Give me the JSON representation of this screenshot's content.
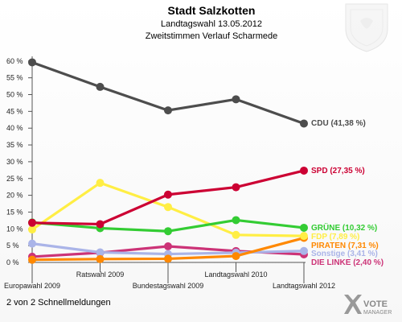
{
  "header": {
    "title": "Stadt Salzkotten",
    "subtitle": "Landtagswahl 13.05.2012",
    "subtitle2": "Zweitstimmen Verlauf Scharmede"
  },
  "footer": {
    "note": "2 von 2 Schnellmeldungen",
    "brand_line1": "VOTE",
    "brand_line2": "MANAGER"
  },
  "chart_data": {
    "type": "line",
    "title": "Stadt Salzkotten",
    "categories": [
      "Europawahl 2009",
      "Ratswahl 2009",
      "Bundestagswahl 2009",
      "Landtagswahl 2010",
      "Landtagswahl 2012"
    ],
    "ylim": [
      0,
      62
    ],
    "yticks": [
      "0 %",
      "5 %",
      "10 %",
      "15 %",
      "20 %",
      "25 %",
      "30 %",
      "35 %",
      "40 %",
      "45 %",
      "50 %",
      "55 %",
      "60 %"
    ],
    "grid": false,
    "series": [
      {
        "name": "CDU",
        "label": "CDU (41,38 %)",
        "color": "#4d4d4d",
        "values": [
          59.6,
          52.3,
          45.3,
          48.6,
          41.38
        ]
      },
      {
        "name": "SPD",
        "label": "SPD (27,35 %)",
        "color": "#cc0033",
        "values": [
          11.8,
          11.4,
          20.2,
          22.4,
          27.35
        ]
      },
      {
        "name": "GRÜNE",
        "label": "GRÜNE (10,32 %)",
        "color": "#33cc33",
        "values": [
          11.9,
          10.2,
          9.3,
          12.6,
          10.32
        ]
      },
      {
        "name": "FDP",
        "label": "FDP (7,89 %)",
        "color": "#ffee44",
        "values": [
          9.8,
          23.7,
          16.5,
          8.2,
          7.89
        ]
      },
      {
        "name": "PIRATEN",
        "label": "PIRATEN (7,31 %)",
        "color": "#ff8800",
        "values": [
          0.8,
          1.0,
          1.1,
          1.9,
          7.31
        ]
      },
      {
        "name": "Sonstige",
        "label": "Sonstige (3,41 %)",
        "color": "#aab4e8",
        "values": [
          5.6,
          3.0,
          2.5,
          2.9,
          3.41
        ]
      },
      {
        "name": "DIE LINKE",
        "label": "DIE LINKE (2,40 %)",
        "color": "#cc3377",
        "values": [
          1.7,
          2.9,
          4.8,
          3.4,
          2.4
        ]
      }
    ]
  }
}
